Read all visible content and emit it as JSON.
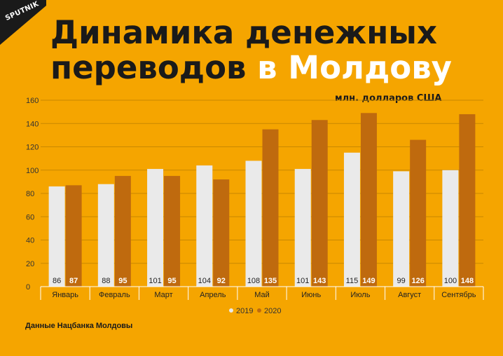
{
  "brand": {
    "logo_text": "SPUTNIK"
  },
  "title": {
    "line1": "Динамика денежных",
    "line2_part1": "переводов ",
    "line2_part2": "в Молдову"
  },
  "unit_label": "млн. долларов США",
  "source_note": "Данные Нацбанка Молдовы",
  "colors": {
    "background": "#F5A500",
    "series_2019": "#EAEAEA",
    "series_2020": "#BF6A0E",
    "gridline": "#C98800",
    "title_text": "#1a1a1a",
    "title_highlight": "#ffffff"
  },
  "chart_data": {
    "type": "bar",
    "categories": [
      "Январь",
      "Февраль",
      "Март",
      "Апрель",
      "Май",
      "Июнь",
      "Июль",
      "Август",
      "Сентябрь"
    ],
    "series": [
      {
        "name": "2019",
        "values": [
          86,
          88,
          101,
          104,
          108,
          101,
          115,
          99,
          100
        ],
        "color": "#EAEAEA"
      },
      {
        "name": "2020",
        "values": [
          87,
          95,
          95,
          92,
          135,
          143,
          149,
          126,
          148
        ],
        "color": "#BF6A0E"
      }
    ],
    "yticks": [
      0,
      20,
      40,
      60,
      80,
      100,
      120,
      140,
      160
    ],
    "ylim": [
      0,
      160
    ],
    "grid": true,
    "legend_position": "bottom-center",
    "data_labels": true
  }
}
